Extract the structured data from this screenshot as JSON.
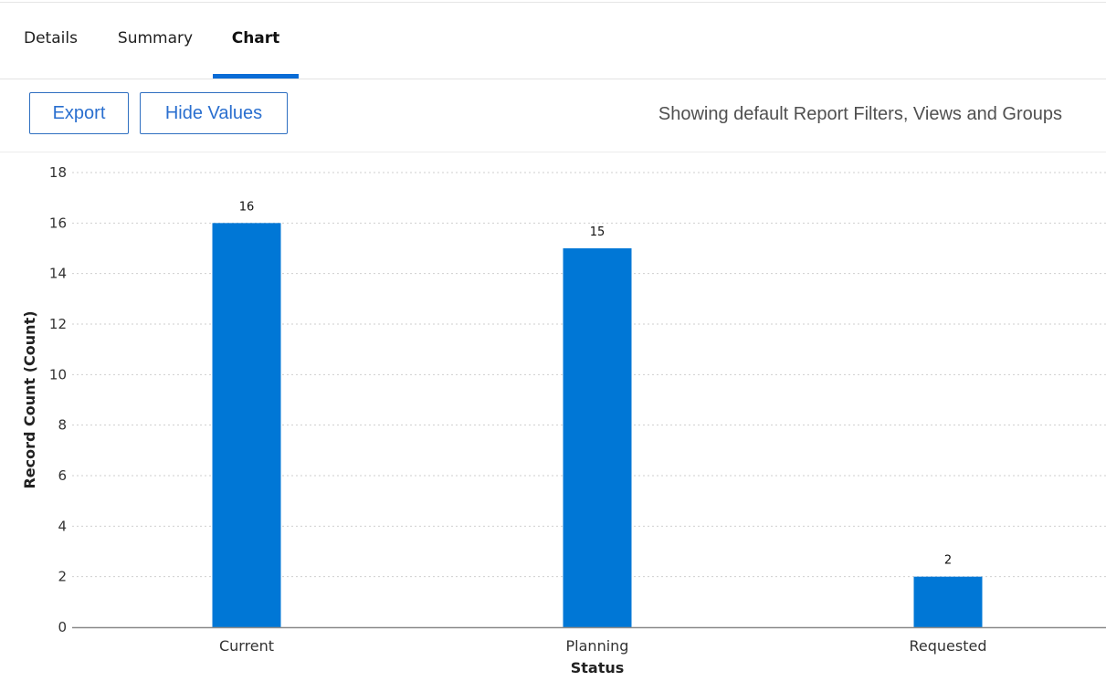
{
  "tabs": [
    {
      "label": "Details",
      "active": false
    },
    {
      "label": "Summary",
      "active": false
    },
    {
      "label": "Chart",
      "active": true
    }
  ],
  "toolbar": {
    "export_label": "Export",
    "hide_values_label": "Hide Values",
    "filters_note": "Showing default Report Filters, Views and Groups"
  },
  "colors": {
    "accent": "#0a6cd6",
    "bar": "#0077d6",
    "button_border": "#2f6fc1"
  },
  "chart_data": {
    "type": "bar",
    "categories": [
      "Current",
      "Planning",
      "Requested"
    ],
    "values": [
      16,
      15,
      2
    ],
    "data_labels": [
      "16",
      "15",
      "2"
    ],
    "xlabel": "Status",
    "ylabel": "Record Count (Count)",
    "ylim": [
      0,
      18
    ],
    "yticks": [
      0,
      2,
      4,
      6,
      8,
      10,
      12,
      14,
      16,
      18
    ],
    "grid": true,
    "legend": "none"
  }
}
